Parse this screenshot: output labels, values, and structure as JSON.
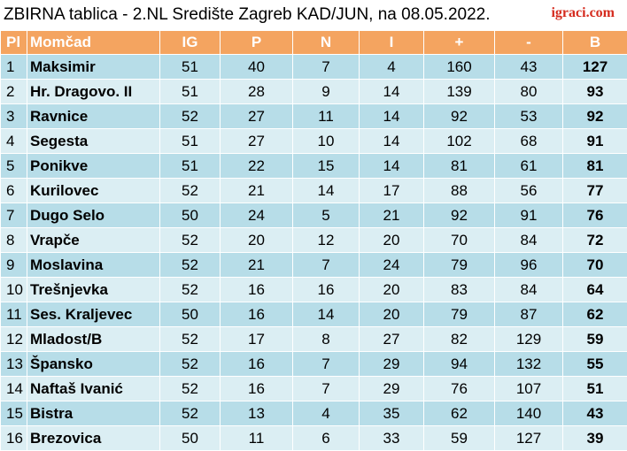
{
  "header": {
    "title": "ZBIRNA tablica - 2.NL Središte Zagreb KAD/JUN, na 08.05.2022.",
    "logo": "igraci.com"
  },
  "table": {
    "columns": [
      "Pl",
      "Momčad",
      "IG",
      "P",
      "N",
      "I",
      "+",
      "-",
      "B"
    ],
    "rows": [
      [
        1,
        "Maksimir",
        51,
        40,
        7,
        4,
        160,
        43,
        127
      ],
      [
        2,
        "Hr. Dragovo. II",
        51,
        28,
        9,
        14,
        139,
        80,
        93
      ],
      [
        3,
        "Ravnice",
        52,
        27,
        11,
        14,
        92,
        53,
        92
      ],
      [
        4,
        "Segesta",
        51,
        27,
        10,
        14,
        102,
        68,
        91
      ],
      [
        5,
        "Ponikve",
        51,
        22,
        15,
        14,
        81,
        61,
        81
      ],
      [
        6,
        "Kurilovec",
        52,
        21,
        14,
        17,
        88,
        56,
        77
      ],
      [
        7,
        "Dugo Selo",
        50,
        24,
        5,
        21,
        92,
        91,
        76
      ],
      [
        8,
        "Vrapče",
        52,
        20,
        12,
        20,
        70,
        84,
        72
      ],
      [
        9,
        "Moslavina",
        52,
        21,
        7,
        24,
        79,
        96,
        70
      ],
      [
        10,
        "Trešnjevka",
        52,
        16,
        16,
        20,
        83,
        84,
        64
      ],
      [
        11,
        "Ses. Kraljevec",
        50,
        16,
        14,
        20,
        79,
        87,
        62
      ],
      [
        12,
        "Mladost/B",
        52,
        17,
        8,
        27,
        82,
        129,
        59
      ],
      [
        13,
        "Špansko",
        52,
        16,
        7,
        29,
        94,
        132,
        55
      ],
      [
        14,
        "Naftaš Ivanić",
        52,
        16,
        7,
        29,
        76,
        107,
        51
      ],
      [
        15,
        "Bistra",
        52,
        13,
        4,
        35,
        62,
        140,
        43
      ],
      [
        16,
        "Brezovica",
        50,
        11,
        6,
        33,
        59,
        127,
        39
      ]
    ]
  }
}
